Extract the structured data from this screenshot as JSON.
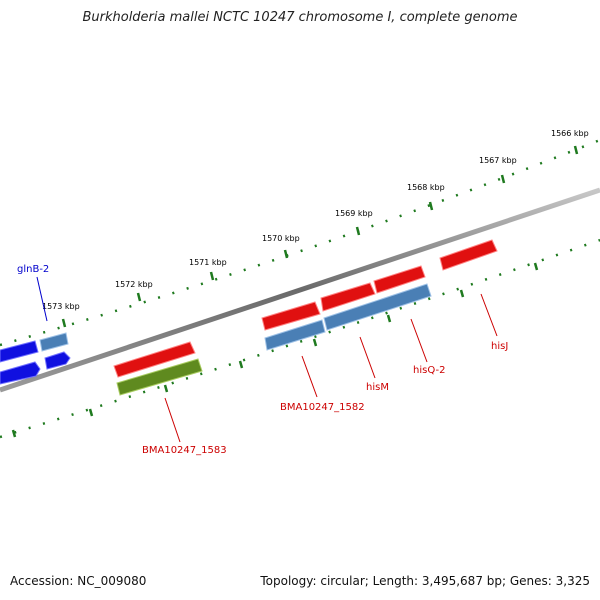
{
  "title": "Burkholderia mallei NCTC 10247 chromosome I, complete genome",
  "footer": {
    "accession": "Accession: NC_009080",
    "summary": "Topology: circular; Length: 3,495,687 bp; Genes: 3,325"
  },
  "colors": {
    "backbone": "#7a7a7a",
    "tick": "#1f7a1f",
    "red_feature": "#e01010",
    "red_label": "#cc0000",
    "steel_feature": "#4a7fb5",
    "blue_feature": "#1010e0",
    "blue_label": "#0000cc",
    "olive_feature": "#5f8a1f"
  },
  "scale_labels": [
    "1566 kbp",
    "1567 kbp",
    "1568 kbp",
    "1569 kbp",
    "1570 kbp",
    "1571 kbp",
    "1572 kbp",
    "1573 kbp"
  ],
  "gene_labels": {
    "glnB": "glnB-2",
    "bma1583": "BMA10247_1583",
    "bma1582": "BMA10247_1582",
    "hisM": "hisM",
    "hisQ": "hisQ-2",
    "hisJ": "hisJ"
  }
}
